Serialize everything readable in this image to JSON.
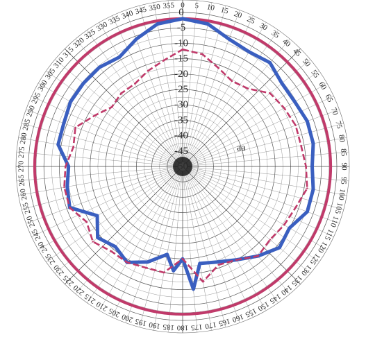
{
  "chart_data": {
    "type": "polar-line",
    "title": "",
    "radial_axis": {
      "range": [
        -50,
        0
      ],
      "tick_labels": [
        "0",
        "-5",
        "-10",
        "-15",
        "-20",
        "-25",
        "-30",
        "-35",
        "-40",
        "-45",
        "-50"
      ]
    },
    "angular_axis": {
      "range_deg": [
        0,
        360
      ],
      "direction": "clockwise",
      "zero_at": "top",
      "visible_labels": [
        "0",
        "45",
        "90",
        "135",
        "180",
        "225",
        "270",
        "315"
      ]
    },
    "annotations": [
      {
        "text": "aa"
      }
    ],
    "grid": true,
    "legend": "none",
    "series": [
      {
        "color": "#c03a6a",
        "style": "solid",
        "angles": [
          0,
          90,
          180,
          270
        ],
        "values": [
          -2,
          -2,
          -2,
          -2
        ]
      },
      {
        "color": "#3a5fc0",
        "style": "solid",
        "angles": [
          0,
          10,
          20,
          30,
          40,
          50,
          60,
          70,
          80,
          90,
          100,
          110,
          120,
          130,
          140,
          150,
          160,
          170,
          175,
          180,
          185,
          190,
          200,
          210,
          220,
          230,
          240,
          250,
          260,
          270,
          280,
          290,
          300,
          310,
          320,
          330,
          340,
          350
        ],
        "values": [
          -2,
          -3,
          -6,
          -7,
          -6,
          -8,
          -8,
          -7,
          -7,
          -8,
          -7,
          -7,
          -10,
          -9,
          -12,
          -15,
          -17,
          -18,
          -10,
          -20,
          -16,
          -21,
          -17,
          -14,
          -16,
          -14,
          -18,
          -11,
          -12,
          -13,
          -9,
          -9,
          -8,
          -8,
          -8,
          -9,
          -6,
          -3
        ]
      },
      {
        "color": "#c03a6a",
        "style": "dashed",
        "angles": [
          0,
          10,
          20,
          30,
          40,
          50,
          60,
          70,
          80,
          90,
          100,
          110,
          120,
          130,
          140,
          150,
          160,
          170,
          180,
          190,
          200,
          210,
          220,
          230,
          240,
          250,
          260,
          270,
          280,
          290,
          300,
          310,
          320,
          330,
          340,
          350
        ],
        "values": [
          -12,
          -13,
          -16,
          -18,
          -17,
          -13,
          -12,
          -11,
          -11,
          -10,
          -9,
          -11,
          -12,
          -13,
          -12,
          -15,
          -16,
          -12,
          -20,
          -15,
          -15,
          -14,
          -14,
          -12,
          -14,
          -11,
          -11,
          -12,
          -14,
          -13,
          -17,
          -20,
          -19,
          -19,
          -17,
          -15
        ]
      }
    ]
  }
}
